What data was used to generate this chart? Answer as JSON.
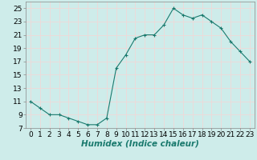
{
  "x": [
    0,
    1,
    2,
    3,
    4,
    5,
    6,
    7,
    8,
    9,
    10,
    11,
    12,
    13,
    14,
    15,
    16,
    17,
    18,
    19,
    20,
    21,
    22,
    23
  ],
  "y": [
    11,
    10,
    9,
    9,
    8.5,
    8,
    7.5,
    7.5,
    8.5,
    16,
    18,
    20.5,
    21,
    21,
    22.5,
    25,
    24,
    23.5,
    24,
    23,
    22,
    20,
    18.5,
    17
  ],
  "line_color": "#1a7a6e",
  "marker": "+",
  "marker_color": "#1a7a6e",
  "bg_color": "#ceecea",
  "grid_color": "#f0d8d8",
  "xlabel": "Humidex (Indice chaleur)",
  "xlabel_fontsize": 7.5,
  "xlabel_style": "italic",
  "xlabel_weight": "bold",
  "ylim": [
    7,
    26
  ],
  "xlim": [
    -0.5,
    23.5
  ],
  "yticks": [
    7,
    9,
    11,
    13,
    15,
    17,
    19,
    21,
    23,
    25
  ],
  "xticks": [
    0,
    1,
    2,
    3,
    4,
    5,
    6,
    7,
    8,
    9,
    10,
    11,
    12,
    13,
    14,
    15,
    16,
    17,
    18,
    19,
    20,
    21,
    22,
    23
  ],
  "tick_fontsize": 6.5
}
